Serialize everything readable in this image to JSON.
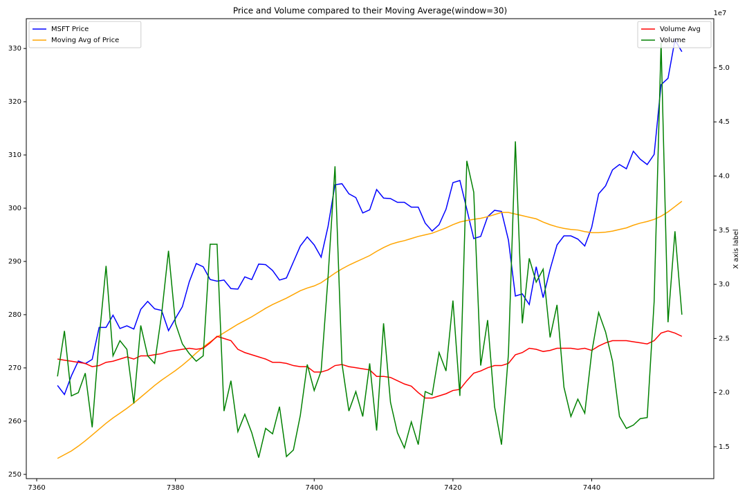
{
  "chart_data": {
    "type": "line",
    "title": "Price and Volume compared to their Moving Average(window=30)",
    "y2label": "X axis label",
    "y2_offset": "1e7",
    "legend_loc": "upper left",
    "legend2_loc": "upper right",
    "grid": false,
    "x": [
      7363,
      7364,
      7365,
      7366,
      7367,
      7368,
      7369,
      7370,
      7371,
      7372,
      7373,
      7374,
      7375,
      7376,
      7377,
      7378,
      7379,
      7380,
      7381,
      7382,
      7383,
      7384,
      7385,
      7386,
      7387,
      7388,
      7389,
      7390,
      7391,
      7392,
      7393,
      7394,
      7395,
      7396,
      7397,
      7398,
      7399,
      7400,
      7401,
      7402,
      7403,
      7404,
      7405,
      7406,
      7407,
      7408,
      7409,
      7410,
      7411,
      7412,
      7413,
      7414,
      7415,
      7416,
      7417,
      7418,
      7419,
      7420,
      7421,
      7422,
      7423,
      7424,
      7425,
      7426,
      7427,
      7428,
      7429,
      7430,
      7431,
      7432,
      7433,
      7434,
      7435,
      7436,
      7437,
      7438,
      7439,
      7440,
      7441,
      7442,
      7443,
      7444,
      7445,
      7446,
      7447,
      7448,
      7449,
      7450,
      7451,
      7452,
      7453
    ],
    "xlim": [
      7358.5,
      7457.6
    ],
    "xticks": [
      7360,
      7380,
      7400,
      7420,
      7440
    ],
    "ylim": [
      249.2,
      335.6
    ],
    "yticks": [
      250,
      260,
      270,
      280,
      290,
      300,
      310,
      320,
      330
    ],
    "y2lim": [
      1.206,
      5.453
    ],
    "y2ticks": [
      1.5,
      {
        "value": 2,
        "label": "2.0"
      },
      2.5,
      {
        "value": 3,
        "label": "3.0"
      },
      3.5,
      {
        "value": 4,
        "label": "4.0"
      },
      4.5,
      {
        "value": 5,
        "label": "5.0"
      }
    ],
    "series": [
      {
        "name": "MSFT Price",
        "color": "#0000ff",
        "values": [
          266.7,
          265.0,
          268.5,
          271.3,
          270.8,
          271.6,
          277.6,
          277.6,
          279.9,
          277.4,
          277.9,
          277.3,
          281.0,
          282.5,
          281.1,
          280.8,
          277.0,
          279.3,
          281.5,
          286.2,
          289.6,
          289.0,
          286.6,
          286.3,
          286.5,
          284.9,
          284.8,
          287.1,
          286.6,
          289.5,
          289.4,
          288.3,
          286.5,
          286.9,
          289.9,
          292.9,
          294.6,
          293.1,
          290.8,
          296.6,
          304.4,
          304.6,
          302.7,
          302.0,
          299.1,
          299.7,
          303.5,
          301.9,
          301.8,
          301.1,
          301.1,
          300.2,
          300.2,
          297.2,
          295.7,
          296.9,
          299.8,
          304.8,
          305.2,
          299.8,
          294.3,
          294.7,
          298.4,
          299.6,
          299.4,
          294.0,
          283.5,
          283.9,
          281.9,
          289.0,
          283.2,
          288.5,
          293.1,
          294.8,
          294.8,
          294.2,
          292.9,
          296.4,
          302.7,
          304.2,
          307.2,
          308.2,
          307.4,
          310.7,
          309.2,
          308.2,
          310.1,
          323.2,
          324.4,
          331.6,
          329.4
        ]
      },
      {
        "name": "Moving Avg of Price",
        "color": "#ffa500",
        "values": [
          253.0,
          253.7,
          254.4,
          255.3,
          256.3,
          257.4,
          258.5,
          259.6,
          260.6,
          261.5,
          262.4,
          263.4,
          264.5,
          265.6,
          266.7,
          267.7,
          268.6,
          269.5,
          270.5,
          271.6,
          272.8,
          273.9,
          274.9,
          275.8,
          276.6,
          277.4,
          278.2,
          278.9,
          279.6,
          280.4,
          281.2,
          281.9,
          282.5,
          283.1,
          283.8,
          284.5,
          285.0,
          285.4,
          286.0,
          286.9,
          287.8,
          288.6,
          289.3,
          289.9,
          290.5,
          291.1,
          291.9,
          292.6,
          293.2,
          293.6,
          293.9,
          294.3,
          294.7,
          295.0,
          295.3,
          295.8,
          296.3,
          296.9,
          297.4,
          297.7,
          297.9,
          298.1,
          298.4,
          298.8,
          299.2,
          299.2,
          298.9,
          298.6,
          298.3,
          298.0,
          297.4,
          296.9,
          296.5,
          296.2,
          296.0,
          295.9,
          295.6,
          295.4,
          295.4,
          295.5,
          295.7,
          296.0,
          296.3,
          296.8,
          297.2,
          297.5,
          297.9,
          298.5,
          299.3,
          300.3,
          301.3
        ]
      },
      {
        "name": "Volume Avg",
        "color": "#ff0000",
        "axis": "y2",
        "values": [
          2.31,
          2.3,
          2.29,
          2.28,
          2.27,
          2.24,
          2.25,
          2.28,
          2.29,
          2.31,
          2.33,
          2.31,
          2.34,
          2.34,
          2.35,
          2.36,
          2.38,
          2.39,
          2.4,
          2.41,
          2.4,
          2.41,
          2.46,
          2.52,
          2.5,
          2.48,
          2.4,
          2.37,
          2.35,
          2.33,
          2.31,
          2.28,
          2.28,
          2.27,
          2.25,
          2.24,
          2.24,
          2.19,
          2.19,
          2.21,
          2.25,
          2.26,
          2.24,
          2.23,
          2.22,
          2.21,
          2.15,
          2.15,
          2.14,
          2.11,
          2.08,
          2.06,
          2.0,
          1.95,
          1.95,
          1.97,
          1.99,
          2.02,
          2.03,
          2.11,
          2.18,
          2.2,
          2.23,
          2.25,
          2.25,
          2.27,
          2.35,
          2.37,
          2.41,
          2.4,
          2.38,
          2.39,
          2.41,
          2.41,
          2.41,
          2.4,
          2.41,
          2.39,
          2.43,
          2.46,
          2.48,
          2.48,
          2.48,
          2.47,
          2.46,
          2.45,
          2.48,
          2.55,
          2.57,
          2.55,
          2.52
        ]
      },
      {
        "name": "Volume",
        "color": "#008000",
        "axis": "y2",
        "values": [
          2.15,
          2.57,
          1.97,
          2.0,
          2.18,
          1.68,
          2.5,
          3.17,
          2.34,
          2.48,
          2.4,
          1.9,
          2.62,
          2.34,
          2.27,
          2.72,
          3.31,
          2.64,
          2.45,
          2.36,
          2.29,
          2.34,
          3.37,
          3.37,
          1.83,
          2.11,
          1.64,
          1.8,
          1.63,
          1.4,
          1.67,
          1.62,
          1.87,
          1.41,
          1.47,
          1.79,
          2.26,
          2.02,
          2.2,
          3.07,
          4.09,
          2.27,
          1.83,
          2.01,
          1.78,
          2.27,
          1.65,
          2.64,
          1.91,
          1.63,
          1.49,
          1.73,
          1.52,
          2.01,
          1.98,
          2.37,
          2.2,
          2.85,
          1.97,
          4.14,
          3.85,
          2.25,
          2.67,
          1.87,
          1.52,
          2.36,
          4.32,
          2.64,
          3.24,
          3.02,
          3.14,
          2.51,
          2.81,
          2.05,
          1.78,
          1.94,
          1.81,
          2.37,
          2.74,
          2.56,
          2.29,
          1.78,
          1.67,
          1.7,
          1.76,
          1.77,
          2.84,
          5.23,
          2.65,
          3.49,
          2.72
        ]
      }
    ]
  }
}
